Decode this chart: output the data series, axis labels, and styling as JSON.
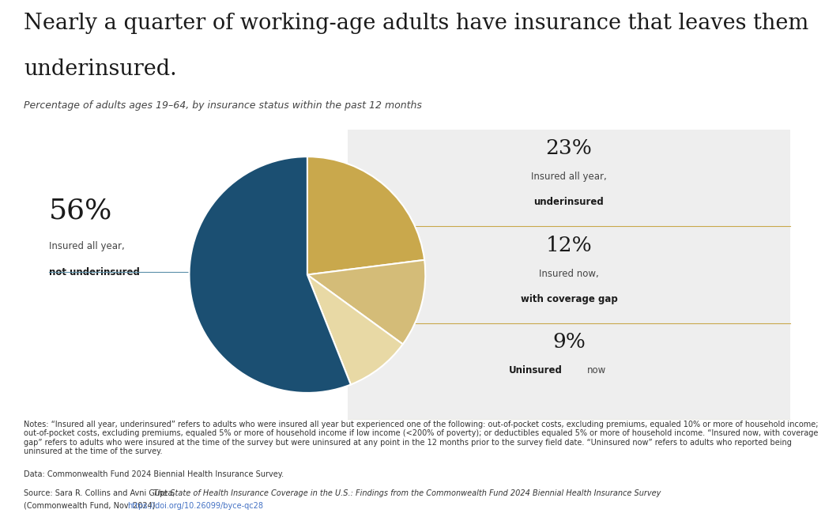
{
  "title_line1": "Nearly a quarter of working-age adults have insurance that leaves them",
  "title_line2": "underinsured.",
  "subtitle": "Percentage of adults ages 19–64, by insurance status within the past 12 months",
  "slices": [
    56,
    23,
    12,
    9
  ],
  "colors": [
    "#1b4f72",
    "#c9a84c",
    "#d4bc78",
    "#e8d9a5"
  ],
  "right_panel_bg": "#eeeeee",
  "pct_23": "23%",
  "pct_12": "12%",
  "pct_9": "9%",
  "pct_56": "56%",
  "label_56_line1": "Insured all year,",
  "label_56_line2": "not underinsured",
  "label_23_line1": "Insured all year,",
  "label_23_line2": "underinsured",
  "label_12_line1": "Insured now,",
  "label_12_line2": "with coverage gap",
  "label_9_line1": "Uninsured",
  "label_9_line2": "now",
  "divider_color": "#c9a84c",
  "line_color": "#5b8fa8",
  "notes": "Notes: “Insured all year, underinsured” refers to adults who were insured all year but experienced one of the following: out-of-pocket costs, excluding premiums, equaled 10% or more of household income; out-of-pocket costs, excluding premiums, equaled 5% or more of household income if low income (<200% of poverty); or deductibles equaled 5% or more of household income. “Insured now, with coverage gap” refers to adults who were insured at the time of the survey but were uninsured at any point in the 12 months prior to the survey field date. “Uninsured now” refers to adults who reported being uninsured at the time of the survey.",
  "data_line": "Data: Commonwealth Fund 2024 Biennial Health Insurance Survey.",
  "source_prefix": "Source: Sara R. Collins and Avni Gupta, ",
  "source_italic": "The State of Health Insurance Coverage in the U.S.: Findings from the Commonwealth Fund 2024 Biennial Health Insurance Survey",
  "source_suffix": " (Commonwealth Fund, Nov. 2024). ",
  "url": "https://doi.org/10.26099/byce-qc28",
  "url_color": "#4472c4"
}
